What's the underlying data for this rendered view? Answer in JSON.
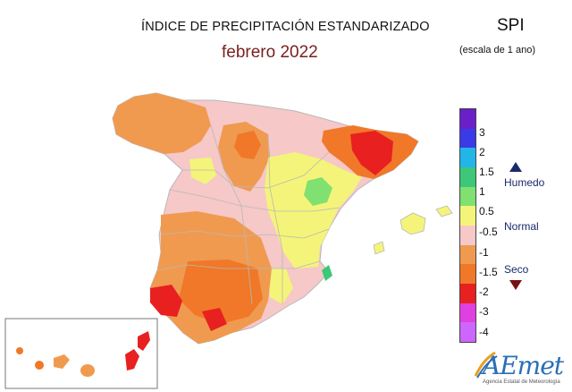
{
  "header": {
    "title": "ÍNDICE DE PRECIPITACIÓN ESTANDARIZADO",
    "subtitle": "febrero 2022",
    "index_code": "SPI",
    "scale_note": "(escala de 1 ano)"
  },
  "legend": {
    "ticks": [
      "3",
      "2",
      "1.5",
      "1",
      "0.5",
      "-0.5",
      "-1",
      "-1.5",
      "-2",
      "-3",
      "-4"
    ],
    "colors": [
      "#6a1fc8",
      "#3a3ae6",
      "#22b5e8",
      "#3cc878",
      "#80e070",
      "#f4f47a",
      "#f6c8c8",
      "#f09a50",
      "#f07828",
      "#e82020",
      "#e040e0",
      "#cc66ff"
    ],
    "categories": {
      "wet": "Humedo",
      "normal": "Normal",
      "dry": "Seco"
    }
  },
  "map": {
    "palette": {
      "very_dry": "#e82020",
      "dry": "#f07828",
      "mod_dry": "#f09a50",
      "near_normal_dry": "#f6c8c8",
      "near_normal": "#f4f47a",
      "mod_wet": "#80e070",
      "wet": "#3cc878",
      "border": "#b8b8b8"
    }
  },
  "logo": {
    "wordmark": "AEmet",
    "caption": "Agencia Estatal de Meteorología"
  }
}
